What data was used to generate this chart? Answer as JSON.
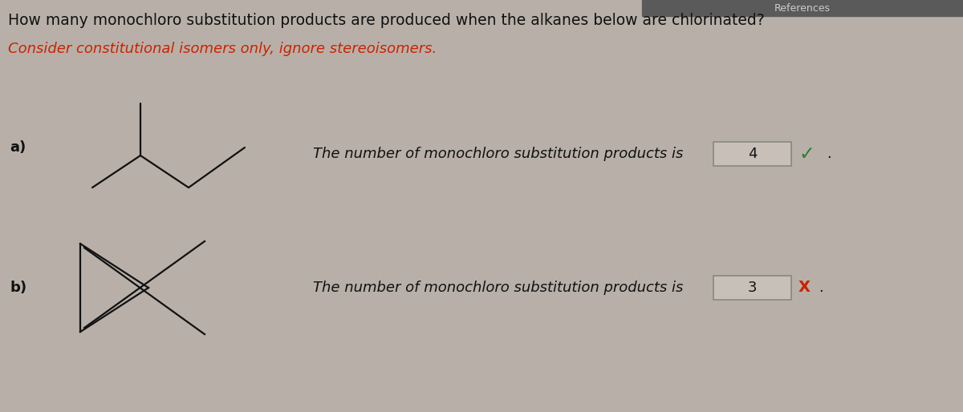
{
  "background_color": "#b8b0a8",
  "top_bar_color": "#5a5a5a",
  "title_text": "How many monochloro substitution products are produced when the alkanes below are chlorinated?",
  "title_color": "#111111",
  "title_fontsize": 13.5,
  "subtitle_text": "Consider constitutional isomers only, ignore stereoisomers.",
  "subtitle_color": "#cc2200",
  "subtitle_fontsize": 13,
  "label_a": "a)",
  "label_b": "b)",
  "label_fontsize": 13,
  "label_color": "#111111",
  "answer_text_a": "The number of monochloro substitution products is ",
  "answer_text_b": "The number of monochloro substitution products is ",
  "answer_value_a": "4",
  "answer_value_b": "3",
  "answer_fontsize": 13,
  "checkmark_color": "#2e7d32",
  "xmark_color": "#cc2200",
  "molecule_color": "#111111",
  "molecule_linewidth": 1.6,
  "box_facecolor": "#c8c0b8",
  "box_edgecolor": "#888880"
}
